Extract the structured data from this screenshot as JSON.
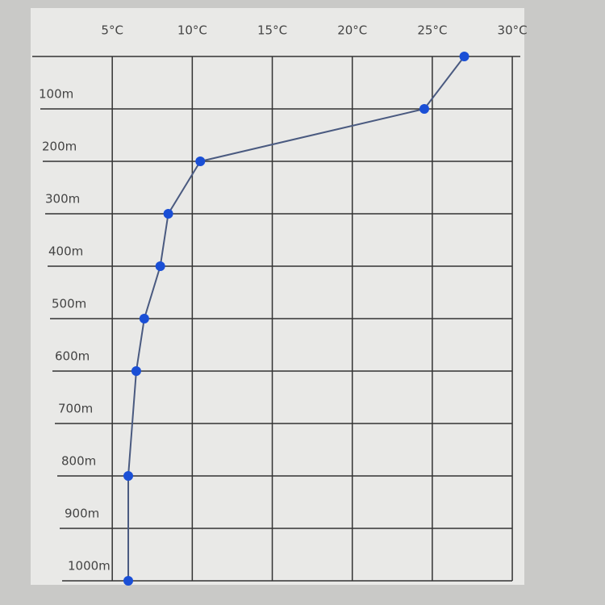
{
  "chart_data": {
    "type": "line",
    "y": [
      0,
      100,
      200,
      300,
      400,
      500,
      600,
      800,
      1000
    ],
    "values": [
      27,
      24.5,
      10.5,
      8.5,
      8,
      7,
      6.5,
      6,
      6
    ],
    "color": "#1a4fd6",
    "xlim": [
      0,
      30.5
    ],
    "xticks": [
      {
        "value": 5,
        "label": "5°C"
      },
      {
        "value": 10,
        "label": "10°C"
      },
      {
        "value": 15,
        "label": "15°C"
      },
      {
        "value": 20,
        "label": "20°C"
      },
      {
        "value": 25,
        "label": "25°C"
      },
      {
        "value": 30,
        "label": "30°C"
      }
    ],
    "ylim": [
      0,
      1000
    ],
    "yticks": [
      {
        "value": 100,
        "label": "100m"
      },
      {
        "value": 200,
        "label": "200m"
      },
      {
        "value": 300,
        "label": "300m"
      },
      {
        "value": 400,
        "label": "400m"
      },
      {
        "value": 500,
        "label": "500m"
      },
      {
        "value": 600,
        "label": "600m"
      },
      {
        "value": 700,
        "label": "700m"
      },
      {
        "value": 800,
        "label": "800m"
      },
      {
        "value": 900,
        "label": "900m"
      },
      {
        "value": 1000,
        "label": "1000m"
      }
    ],
    "grid": true
  }
}
